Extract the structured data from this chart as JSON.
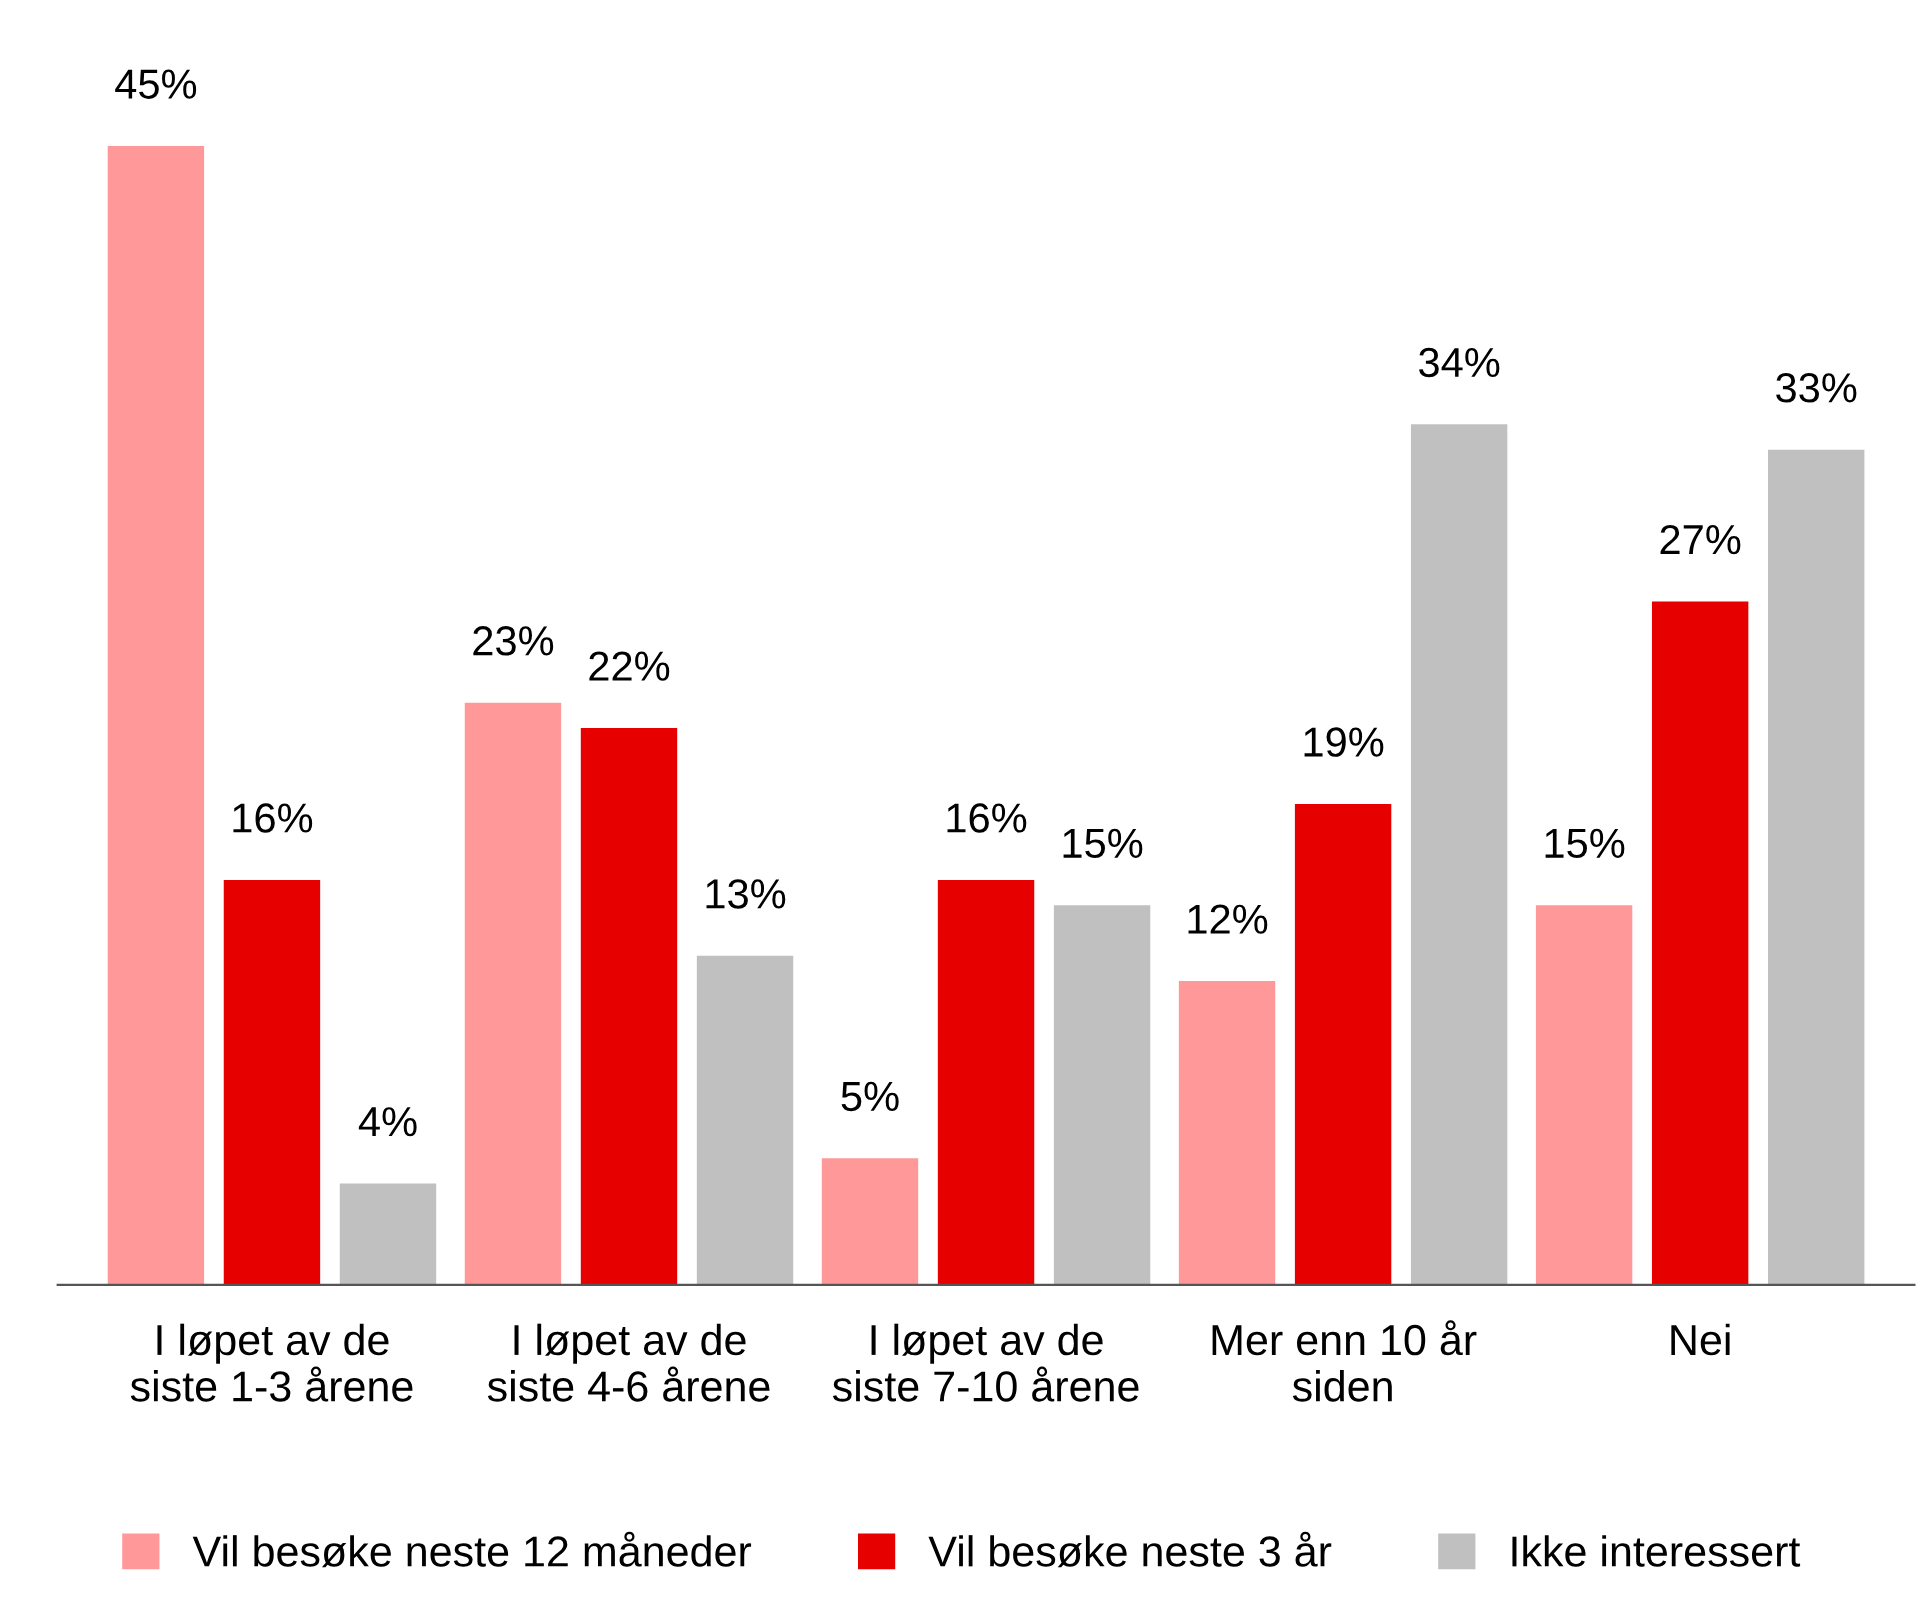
{
  "chart_data": {
    "type": "bar",
    "categories": [
      "I løpet av de\nsiste 1-3 årene",
      "I løpet av de\nsiste 4-6 årene",
      "I løpet av de\nsiste 7-10 årene",
      "Mer enn 10 år\nsiden",
      "Nei"
    ],
    "series": [
      {
        "name": "Vil besøke neste 12 måneder",
        "color": "#ff9999",
        "values": [
          45,
          23,
          5,
          12,
          15
        ],
        "value_labels": [
          "45%",
          "23%",
          "5%",
          "12%",
          "15%"
        ]
      },
      {
        "name": "Vil besøke neste 3 år",
        "color": "#e60000",
        "values": [
          16,
          22,
          16,
          19,
          27
        ],
        "value_labels": [
          "16%",
          "22%",
          "16%",
          "19%",
          "27%"
        ]
      },
      {
        "name": "Ikke interessert",
        "color": "#c0c0c0",
        "values": [
          4,
          13,
          15,
          34,
          33
        ],
        "value_labels": [
          "4%",
          "13%",
          "15%",
          "34%",
          "33%"
        ]
      }
    ],
    "legend": "bottom",
    "grid": false,
    "tick_labels": "x"
  }
}
